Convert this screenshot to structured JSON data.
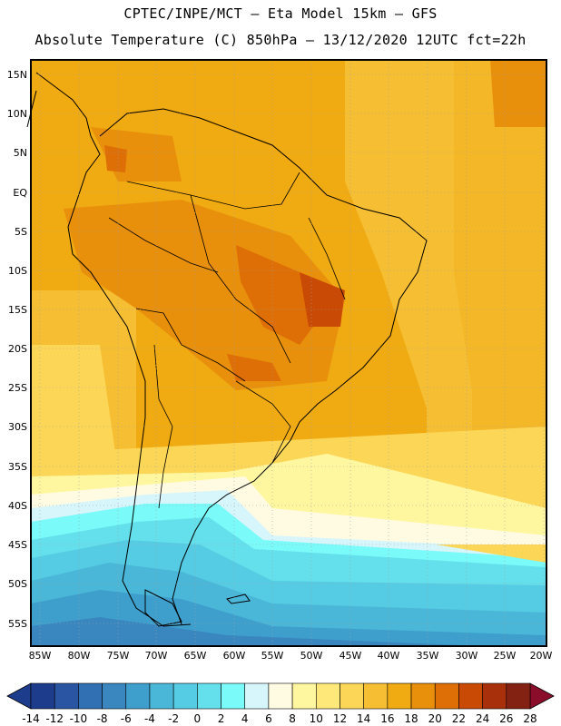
{
  "header": {
    "line1": "CPTEC/INPE/MCT –  Eta Model 15km – GFS",
    "line2": "Absolute Temperature (C) 850hPa – 13/12/2020 12UTC fct=22h"
  },
  "map": {
    "lat_labels": [
      "15N",
      "10N",
      "5N",
      "EQ",
      "5S",
      "10S",
      "15S",
      "20S",
      "25S",
      "30S",
      "35S",
      "40S",
      "45S",
      "50S",
      "55S"
    ],
    "lon_labels": [
      "85W",
      "80W",
      "75W",
      "70W",
      "65W",
      "60W",
      "55W",
      "50W",
      "45W",
      "40W",
      "35W",
      "30W",
      "25W",
      "20W"
    ]
  },
  "colorbar": {
    "labels": [
      "-14",
      "-12",
      "-10",
      "-8",
      "-6",
      "-4",
      "-2",
      "0",
      "2",
      "4",
      "6",
      "8",
      "10",
      "12",
      "14",
      "16",
      "18",
      "20",
      "22",
      "24",
      "26",
      "28"
    ],
    "colors": [
      "#1e3c8c",
      "#2a55a3",
      "#3170b3",
      "#3a87c0",
      "#3f9fcc",
      "#4bb7d8",
      "#55cce3",
      "#64e0ec",
      "#7afaf8",
      "#d6f6fb",
      "#fffbe2",
      "#fff7a0",
      "#ffe87a",
      "#fcd657",
      "#f6bf33",
      "#f0aa12",
      "#e8900c",
      "#de6e06",
      "#c94a05",
      "#a8300b",
      "#832113"
    ]
  }
}
